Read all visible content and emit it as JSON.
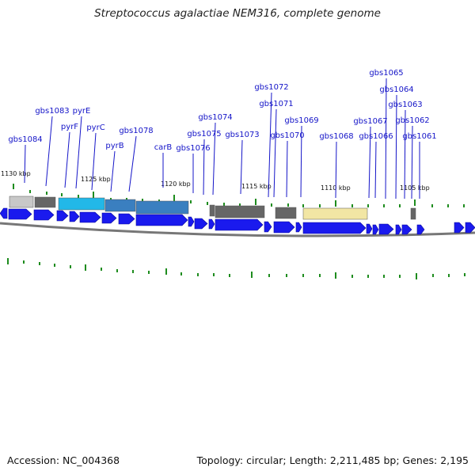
{
  "title": "Streptococcus agalactiae NEM316, complete genome",
  "accession": "Accession: NC_004368",
  "summary": "Topology: circular; Length: 2,211,485 bp; Genes: 2,195",
  "colors": {
    "gene_label": "#1414c8",
    "gene_arrow": "#1a1aee",
    "tick": "#1e8c1e",
    "backbone": "#777777",
    "cds_cyan": "#22b8e8",
    "cds_blue": "#3a7fc0",
    "cds_dark": "#666666",
    "cds_light": "#c8c8c8",
    "cds_yellow": "#f2e6a4"
  },
  "scale_labels": [
    "1130 kbp",
    "1125 kbp",
    "1120 kbp",
    "1115 kbp",
    "1110 kbp",
    "1105 kbp"
  ],
  "gene_labels": [
    "gbs1084",
    "gbs1083",
    "pyrF",
    "pyrE",
    "pyrC",
    "pyrB",
    "gbs1078",
    "carB",
    "gbs1076",
    "gbs1075",
    "gbs1074",
    "gbs1073",
    "gbs1072",
    "gbs1071",
    "gbs1070",
    "gbs1069",
    "gbs1068",
    "gbs1067",
    "gbs1066",
    "gbs1065",
    "gbs1064",
    "gbs1063",
    "gbs1062",
    "gbs1061"
  ]
}
